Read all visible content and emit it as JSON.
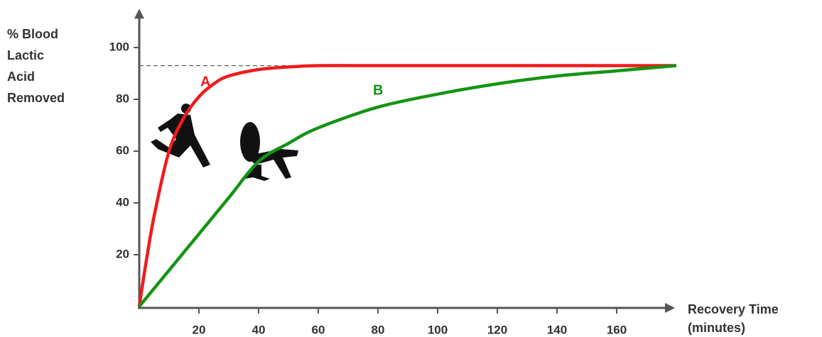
{
  "chart_data": {
    "type": "line",
    "ylabel": [
      "% Blood",
      "Lactic",
      "Acid",
      "Removed"
    ],
    "xlabel": [
      "Recovery Time",
      "(minutes)"
    ],
    "xlim": [
      0,
      180
    ],
    "ylim": [
      0,
      115
    ],
    "xticks": [
      20,
      40,
      60,
      80,
      100,
      120,
      140,
      160
    ],
    "yticks": [
      20,
      40,
      60,
      80,
      100
    ],
    "reference_line": 93,
    "series": [
      {
        "name": "A",
        "color": "#ee1c1c",
        "x": [
          0,
          2,
          5,
          10,
          15,
          20,
          25,
          30,
          40,
          50,
          60,
          80,
          100,
          120,
          140,
          160,
          180
        ],
        "values": [
          0,
          15,
          35,
          60,
          73,
          81,
          86,
          89,
          91.5,
          92.5,
          93,
          93,
          93,
          93,
          93,
          93,
          93
        ]
      },
      {
        "name": "B",
        "color": "#149414",
        "x": [
          0,
          10,
          20,
          30,
          40,
          50,
          60,
          80,
          100,
          120,
          140,
          160,
          180
        ],
        "values": [
          0,
          14,
          28,
          42,
          56,
          63,
          69,
          77,
          82,
          86,
          89,
          91,
          93
        ]
      }
    ]
  }
}
